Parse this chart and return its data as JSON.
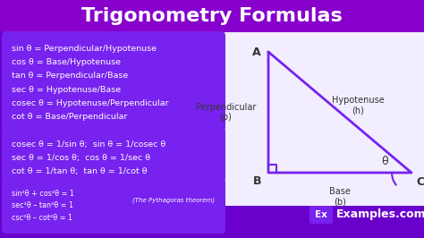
{
  "title": "Trigonometry Formulas",
  "title_color": "#ffffff",
  "title_bg_color": "#8800cc",
  "bg_color": "#6a00cc",
  "box_color": "#7722ee",
  "text_color": "#ffffff",
  "triangle_line_color": "#7722ee",
  "triangle_bg_color": "#f5f5ff",
  "box1_lines": [
    "sin θ = Perpendicular/Hypotenuse",
    "cos θ = Base/Hypotenuse",
    "tan θ = Perpendicular/Base",
    "sec θ = Hypotenuse/Base",
    "cosec θ = Hypotenuse/Perpendicular",
    "cot θ = Base/Perpendicular"
  ],
  "box2_lines": [
    "cosec θ = 1/sin θ;  sin θ = 1/cosec θ",
    "sec θ = 1/cos θ;  cos θ = 1/sec θ",
    "cot θ = 1/tan θ;  tan θ = 1/cot θ"
  ],
  "box3_lines": [
    "sin²θ + cos²θ = 1",
    "sec²θ – tan²θ = 1",
    "csc²θ – cot²θ = 1"
  ],
  "pythagoras_note": "(The Pythagoras theorem)",
  "logo_bg": "#7722ee",
  "logo_text": "Ex",
  "logo_site": "Examples.com",
  "perp_label": "Perpendicular\n(p)",
  "base_label": "Base\n(b)",
  "hyp_label": "Hypotenuse\n(h)",
  "angle_label": "θ",
  "vertex_a": "A",
  "vertex_b": "B",
  "vertex_c": "C",
  "title_fontsize": 16,
  "body_fontsize": 6.8,
  "small_fontsize": 5.8
}
